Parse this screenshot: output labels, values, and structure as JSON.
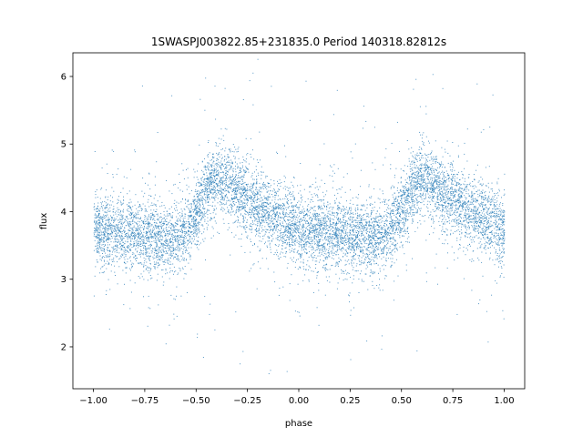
{
  "chart_data": {
    "type": "scatter",
    "title": "1SWASPJ003822.85+231835.0 Period 140318.82812s",
    "xlabel": "phase",
    "ylabel": "flux",
    "xlim": [
      -1.1,
      1.1
    ],
    "ylim": [
      1.38,
      6.35
    ],
    "xticks": [
      -1.0,
      -0.75,
      -0.5,
      -0.25,
      0.0,
      0.25,
      0.5,
      0.75,
      1.0
    ],
    "xtick_labels": [
      "−1.00",
      "−0.75",
      "−0.50",
      "−0.25",
      "0.00",
      "0.25",
      "0.50",
      "0.75",
      "1.00"
    ],
    "yticks": [
      2,
      3,
      4,
      5,
      6
    ],
    "ytick_labels": [
      "2",
      "3",
      "4",
      "5",
      "6"
    ],
    "grid": false,
    "marker_color": "#1f77b4",
    "series": [
      {
        "phase_x": [
          -1.0,
          -0.9,
          -0.8,
          -0.7,
          -0.6,
          -0.55,
          -0.5,
          -0.45,
          -0.4,
          -0.35,
          -0.3,
          -0.2,
          -0.1,
          0.0,
          0.1,
          0.2,
          0.3,
          0.4,
          0.45,
          0.5,
          0.55,
          0.6,
          0.65,
          0.7,
          0.8,
          0.9,
          1.0
        ],
        "median_flux": [
          3.72,
          3.72,
          3.68,
          3.62,
          3.63,
          3.72,
          4.0,
          4.35,
          4.5,
          4.45,
          4.3,
          4.1,
          3.9,
          3.72,
          3.72,
          3.68,
          3.62,
          3.63,
          3.72,
          4.0,
          4.35,
          4.5,
          4.45,
          4.3,
          4.1,
          3.9,
          3.72
        ]
      }
    ]
  }
}
